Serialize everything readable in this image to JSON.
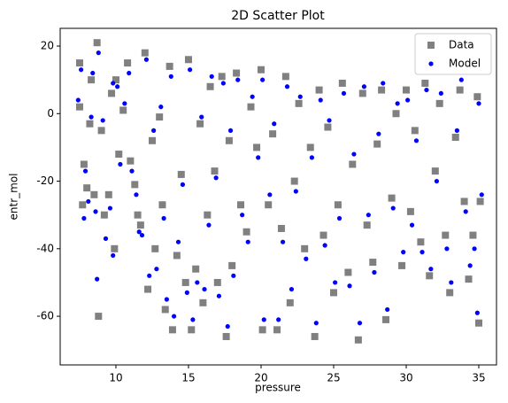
{
  "chart_data": {
    "type": "scatter",
    "title": "2D Scatter Plot",
    "x_label": "pressure",
    "y_label": "entr_mol",
    "xlim": [
      6.16,
      36.22
    ],
    "ylim": [
      -74.4,
      25.25
    ],
    "xticks": [
      10,
      15,
      20,
      25,
      30,
      35
    ],
    "yticks": [
      -60,
      -40,
      -20,
      0,
      20
    ],
    "legend": "upper right",
    "series": [
      {
        "name": "Data",
        "color": "#808080",
        "marker": "square",
        "x": [
          7.5,
          7.5,
          7.7,
          7.8,
          8,
          8.2,
          8.3,
          8.5,
          8.7,
          8.8,
          9,
          9.2,
          9.5,
          9.7,
          9.9,
          10,
          10.2,
          10.5,
          10.8,
          11,
          11.3,
          11.5,
          11.7,
          12,
          12.2,
          12.5,
          12.7,
          13,
          13.2,
          13.4,
          13.7,
          13.9,
          14.2,
          14.5,
          14.8,
          15,
          15.2,
          15.5,
          15.8,
          16,
          16.3,
          16.5,
          16.8,
          17,
          17.3,
          17.6,
          17.8,
          18,
          18.3,
          18.6,
          19,
          19.3,
          19.7,
          20,
          20.1,
          20.5,
          20.8,
          21.1,
          21.4,
          21.7,
          22,
          22.3,
          22.6,
          23,
          23.4,
          23.7,
          24,
          24.3,
          24.6,
          25,
          25.3,
          25.6,
          26,
          26.3,
          26.7,
          27,
          27.3,
          27.7,
          28,
          28.3,
          28.6,
          29,
          29.3,
          29.7,
          30,
          30.3,
          30.6,
          31,
          31.3,
          31.6,
          32,
          32.3,
          32.7,
          33,
          33.4,
          33.7,
          34,
          34.3,
          34.6,
          34.9,
          35,
          35.1
        ],
        "values": [
          15,
          2,
          -27,
          -15,
          -22,
          -3,
          10,
          -24,
          21,
          -60,
          -5,
          -30,
          -24,
          6,
          -40,
          10,
          -12,
          1,
          15,
          -14,
          -21,
          -30,
          -33,
          18,
          -52,
          -8,
          -40,
          -1,
          -27,
          -58,
          14,
          -64,
          -42,
          -18,
          -50,
          16,
          -64,
          -46,
          -3,
          -56,
          -30,
          8,
          -17,
          -50,
          11,
          -66,
          -8,
          -45,
          12,
          -27,
          -35,
          2,
          -10,
          13,
          -64,
          -27,
          -6,
          -64,
          -34,
          11,
          -56,
          -20,
          3,
          -40,
          -10,
          -66,
          7,
          -36,
          -4,
          -53,
          -27,
          9,
          -47,
          -15,
          -67,
          6,
          -33,
          -44,
          -9,
          7,
          -61,
          -25,
          0,
          -45,
          7,
          -29,
          -5,
          -38,
          9,
          -48,
          -17,
          3,
          -36,
          -53,
          -7,
          7,
          -26,
          -49,
          -36,
          5,
          -62,
          -26
        ]
      },
      {
        "name": "Model",
        "color": "#0000ff",
        "marker": "circle",
        "x": [
          7.6,
          7.4,
          7.8,
          7.9,
          8.1,
          8.3,
          8.4,
          8.6,
          8.8,
          8.7,
          9.1,
          9.3,
          9.6,
          9.8,
          9.8,
          10.1,
          10.3,
          10.6,
          10.9,
          11.1,
          11.4,
          11.6,
          11.8,
          12.1,
          12.3,
          12.6,
          12.8,
          13.1,
          13.3,
          13.5,
          13.8,
          14,
          14.3,
          14.6,
          14.9,
          15.1,
          15.3,
          15.6,
          15.9,
          16.1,
          16.4,
          16.6,
          16.9,
          17.1,
          17.4,
          17.7,
          17.9,
          18.1,
          18.4,
          18.7,
          19.1,
          19.4,
          19.8,
          20.1,
          20.2,
          20.6,
          20.9,
          21.2,
          21.5,
          21.8,
          22.1,
          22.4,
          22.7,
          23.1,
          23.5,
          23.8,
          24.1,
          24.4,
          24.7,
          25.1,
          25.4,
          25.7,
          26.1,
          26.4,
          26.8,
          27.1,
          27.4,
          27.8,
          28.1,
          28.4,
          28.7,
          29.1,
          29.4,
          29.8,
          30.1,
          30.4,
          30.7,
          31.1,
          31.4,
          31.7,
          32.1,
          32.4,
          32.8,
          33.1,
          33.5,
          33.8,
          34.1,
          34.4,
          34.7,
          35,
          34.9,
          35.2
        ],
        "values": [
          13,
          4,
          -31,
          -17,
          -26,
          -1,
          12,
          -29,
          18,
          -49,
          -2,
          -37,
          -28,
          9,
          -42,
          8,
          -15,
          3,
          12,
          -17,
          -24,
          -35,
          -36,
          16,
          -48,
          -5,
          -46,
          2,
          -31,
          -55,
          11,
          -60,
          -38,
          -21,
          -53,
          13,
          -61,
          -50,
          -1,
          -52,
          -33,
          11,
          -19,
          -54,
          9,
          -63,
          -5,
          -48,
          10,
          -30,
          -38,
          5,
          -13,
          10,
          -61,
          -24,
          -3,
          -61,
          -38,
          8,
          -52,
          -23,
          5,
          -43,
          -13,
          -62,
          4,
          -39,
          -2,
          -50,
          -31,
          6,
          -51,
          -12,
          -62,
          8,
          -30,
          -47,
          -6,
          9,
          -58,
          -28,
          3,
          -41,
          4,
          -33,
          -8,
          -41,
          7,
          -46,
          -20,
          6,
          -40,
          -50,
          -5,
          10,
          -29,
          -45,
          -40,
          3,
          -59,
          -24
        ]
      }
    ]
  }
}
